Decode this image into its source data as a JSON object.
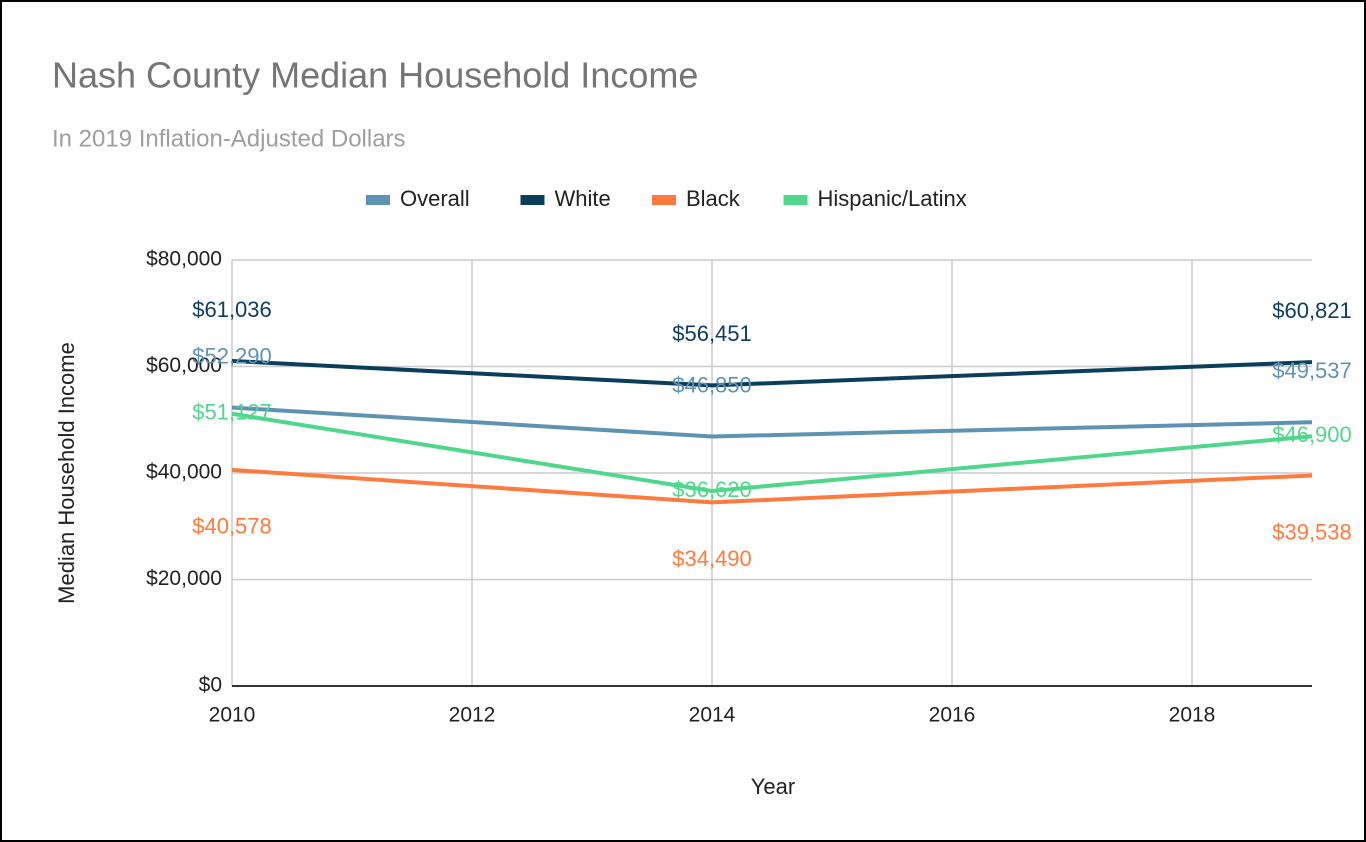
{
  "chart_data": {
    "type": "line",
    "title": "Nash County Median Household Income",
    "subtitle": "In 2019 Inflation-Adjusted Dollars",
    "x_label": "Year",
    "y_label": "Median Household Income",
    "x": [
      2010,
      2014,
      2019
    ],
    "series": [
      {
        "name": "Overall",
        "color": "#5f93b3",
        "values": [
          52290,
          46850,
          49537
        ],
        "value_labels": [
          "$52,290",
          "$46,850",
          "$49,537"
        ]
      },
      {
        "name": "White",
        "color": "#0b3e5c",
        "values": [
          61036,
          56451,
          60821
        ],
        "value_labels": [
          "$61,036",
          "$56,451",
          "$60,821"
        ]
      },
      {
        "name": "Black",
        "color": "#ff7a3d",
        "values": [
          40578,
          34490,
          39538
        ],
        "value_labels": [
          "$40,578",
          "$34,490",
          "$39,538"
        ]
      },
      {
        "name": "Hispanic/Latinx",
        "color": "#4fd88c",
        "values": [
          51127,
          36620,
          46900
        ],
        "value_labels": [
          "$51,127",
          "$36,620",
          "$46,900"
        ]
      }
    ],
    "xlim": [
      2010,
      2019
    ],
    "xticks": [
      2010,
      2012,
      2014,
      2016,
      2018
    ],
    "ylim": [
      0,
      80000
    ],
    "yticks": [
      {
        "value": 0,
        "label": "$0"
      },
      {
        "value": 20000,
        "label": "$20,000"
      },
      {
        "value": 40000,
        "label": "$40,000"
      },
      {
        "value": 60000,
        "label": "$60,000"
      },
      {
        "value": 80000,
        "label": "$80,000"
      }
    ],
    "grid": true,
    "legend": "top"
  }
}
